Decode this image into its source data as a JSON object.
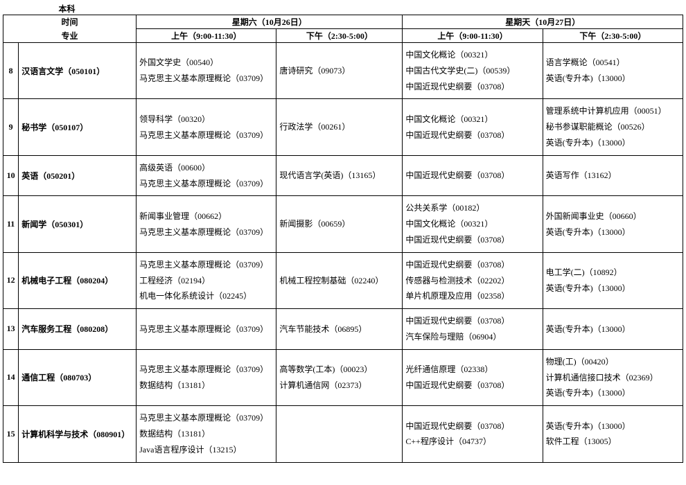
{
  "header": {
    "level": "本科",
    "time_label": "时间",
    "major_label": "专业",
    "day1": "星期六（10月26日）",
    "day2": "星期天（10月27日）",
    "am": "上午（9:00-11:30）",
    "pm": "下午（2:30-5:00）"
  },
  "rows": [
    {
      "num": "8",
      "major": "汉语言文学（050101）",
      "d1am": "外国文学史（00540）\n马克思主义基本原理概论（03709）",
      "d1pm": "唐诗研究（09073）",
      "d2am": "中国文化概论（00321）\n中国古代文学史(二)（00539）\n中国近现代史纲要（03708）",
      "d2pm": "语言学概论（00541）\n英语(专升本)（13000）"
    },
    {
      "num": "9",
      "major": "秘书学（050107）",
      "d1am": "领导科学（00320）\n马克思主义基本原理概论（03709）",
      "d1pm": "行政法学（00261）",
      "d2am": "中国文化概论（00321）\n中国近现代史纲要（03708）",
      "d2pm": "管理系统中计算机应用（00051）\n秘书参谋职能概论（00526）\n英语(专升本)（13000）"
    },
    {
      "num": "10",
      "major": "英语（050201）",
      "d1am": "高级英语（00600）\n马克思主义基本原理概论（03709）",
      "d1pm": "现代语言学(英语)（13165）",
      "d2am": "中国近现代史纲要（03708）",
      "d2pm": "英语写作（13162）"
    },
    {
      "num": "11",
      "major": "新闻学（050301）",
      "d1am": "新闻事业管理（00662）\n马克思主义基本原理概论（03709）",
      "d1pm": "新闻摄影（00659）",
      "d2am": "公共关系学（00182）\n中国文化概论（00321）\n中国近现代史纲要（03708）",
      "d2pm": "外国新闻事业史（00660）\n英语(专升本)（13000）"
    },
    {
      "num": "12",
      "major": "机械电子工程（080204）",
      "d1am": "马克思主义基本原理概论（03709）\n工程经济（02194）\n机电一体化系统设计（02245）",
      "d1pm": "机械工程控制基础（02240）",
      "d2am": "中国近现代史纲要（03708）\n传感器与检测技术（02202）\n单片机原理及应用（02358）",
      "d2pm": "电工学(二)（10892）\n英语(专升本)（13000）"
    },
    {
      "num": "13",
      "major": "汽车服务工程（080208）",
      "d1am": "马克思主义基本原理概论（03709）",
      "d1pm": "汽车节能技术（06895）",
      "d2am": "中国近现代史纲要（03708）\n汽车保险与理赔（06904）",
      "d2pm": "英语(专升本)（13000）"
    },
    {
      "num": "14",
      "major": "通信工程（080703）",
      "d1am": "马克思主义基本原理概论（03709）\n数据结构（13181）",
      "d1pm": "高等数学(工本)（00023）\n计算机通信网（02373）",
      "d2am": "光纤通信原理（02338）\n中国近现代史纲要（03708）",
      "d2pm": "物理(工)（00420）\n计算机通信接口技术（02369）\n英语(专升本)（13000）"
    },
    {
      "num": "15",
      "major": "计算机科学与技术（080901）",
      "d1am": "马克思主义基本原理概论（03709）\n数据结构（13181）\nJava语言程序设计（13215）",
      "d1pm": "",
      "d2am": "中国近现代史纲要（03708）\nC++程序设计（04737）",
      "d2pm": "英语(专升本)（13000）\n软件工程（13005）"
    }
  ]
}
